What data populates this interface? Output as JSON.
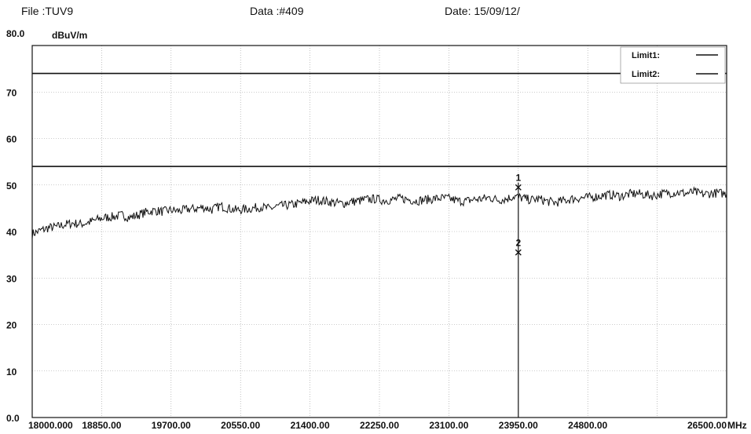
{
  "header": {
    "file": "File :TUV9",
    "data": "Data :#409",
    "date": "Date: 15/09/12/"
  },
  "chart_data": {
    "type": "line",
    "xunit": "MHz",
    "ylabel": "dBuV/m",
    "ylim": [
      0,
      80
    ],
    "xlim": [
      18000,
      26500
    ],
    "y_ticks": [
      {
        "value": 80,
        "label": "80.0"
      },
      {
        "value": 70,
        "label": "70"
      },
      {
        "value": 60,
        "label": "60"
      },
      {
        "value": 50,
        "label": "50"
      },
      {
        "value": 40,
        "label": "40"
      },
      {
        "value": 30,
        "label": "30"
      },
      {
        "value": 20,
        "label": "20"
      },
      {
        "value": 10,
        "label": "10"
      },
      {
        "value": 0,
        "label": "0.0"
      }
    ],
    "x_ticks": [
      {
        "value": 18000,
        "label": "18000.000"
      },
      {
        "value": 18850,
        "label": "18850.00"
      },
      {
        "value": 19700,
        "label": "19700.00"
      },
      {
        "value": 20550,
        "label": "20550.00"
      },
      {
        "value": 21400,
        "label": "21400.00"
      },
      {
        "value": 22250,
        "label": "22250.00"
      },
      {
        "value": 23100,
        "label": "23100.00"
      },
      {
        "value": 23950,
        "label": "23950.00"
      },
      {
        "value": 24800,
        "label": "24800.00"
      },
      {
        "value": 26500,
        "label": "26500.00"
      }
    ],
    "grid": true,
    "legend": {
      "position": "top-right",
      "entries": [
        "Limit1:",
        "Limit2:"
      ]
    },
    "limits": [
      {
        "name": "Limit1:",
        "value": 74
      },
      {
        "name": "Limit2:",
        "value": 54
      }
    ],
    "markers": [
      {
        "label": "1",
        "x": 23950,
        "y": 49.5
      },
      {
        "label": "2",
        "x": 23950,
        "y": 35.5
      }
    ],
    "trace": {
      "x": [
        18000,
        18100,
        18200,
        18300,
        18400,
        18500,
        18600,
        18700,
        18800,
        18900,
        19000,
        19100,
        19200,
        19300,
        19400,
        19500,
        19600,
        19700,
        19800,
        19900,
        20000,
        20100,
        20200,
        20300,
        20400,
        20500,
        20600,
        20700,
        20800,
        20900,
        21000,
        21100,
        21200,
        21300,
        21400,
        21500,
        21600,
        21700,
        21800,
        21900,
        22000,
        22100,
        22200,
        22300,
        22400,
        22500,
        22600,
        22700,
        22800,
        22900,
        23000,
        23100,
        23200,
        23300,
        23400,
        23500,
        23600,
        23700,
        23800,
        23900,
        24000,
        24100,
        24200,
        24300,
        24400,
        24500,
        24600,
        24700,
        24800,
        24900,
        25000,
        25100,
        25200,
        25300,
        25400,
        25500,
        25600,
        25700,
        25800,
        25900,
        26000,
        26100,
        26200,
        26300,
        26400,
        26500
      ],
      "y": [
        39.5,
        40.2,
        40.8,
        41.0,
        41.5,
        41.8,
        41.6,
        42.0,
        42.6,
        43.0,
        43.2,
        43.5,
        43.0,
        43.6,
        44.2,
        44.5,
        44.3,
        44.6,
        44.4,
        44.8,
        44.9,
        45.2,
        44.7,
        45.5,
        45.0,
        44.6,
        44.8,
        45.0,
        45.3,
        44.9,
        45.4,
        45.6,
        45.8,
        46.2,
        46.6,
        46.8,
        46.5,
        46.2,
        46.0,
        46.4,
        46.6,
        46.9,
        47.0,
        46.7,
        46.8,
        47.1,
        46.9,
        46.6,
        46.8,
        47.0,
        47.2,
        47.1,
        46.6,
        46.5,
        46.9,
        47.0,
        47.3,
        46.8,
        47.0,
        47.6,
        47.2,
        46.8,
        47.0,
        46.5,
        46.2,
        46.6,
        47.0,
        47.2,
        47.3,
        47.5,
        47.8,
        47.9,
        47.6,
        48.0,
        48.2,
        47.9,
        47.7,
        48.1,
        48.3,
        48.4,
        48.2,
        48.5,
        48.0,
        48.2,
        48.3,
        48.1
      ]
    }
  }
}
